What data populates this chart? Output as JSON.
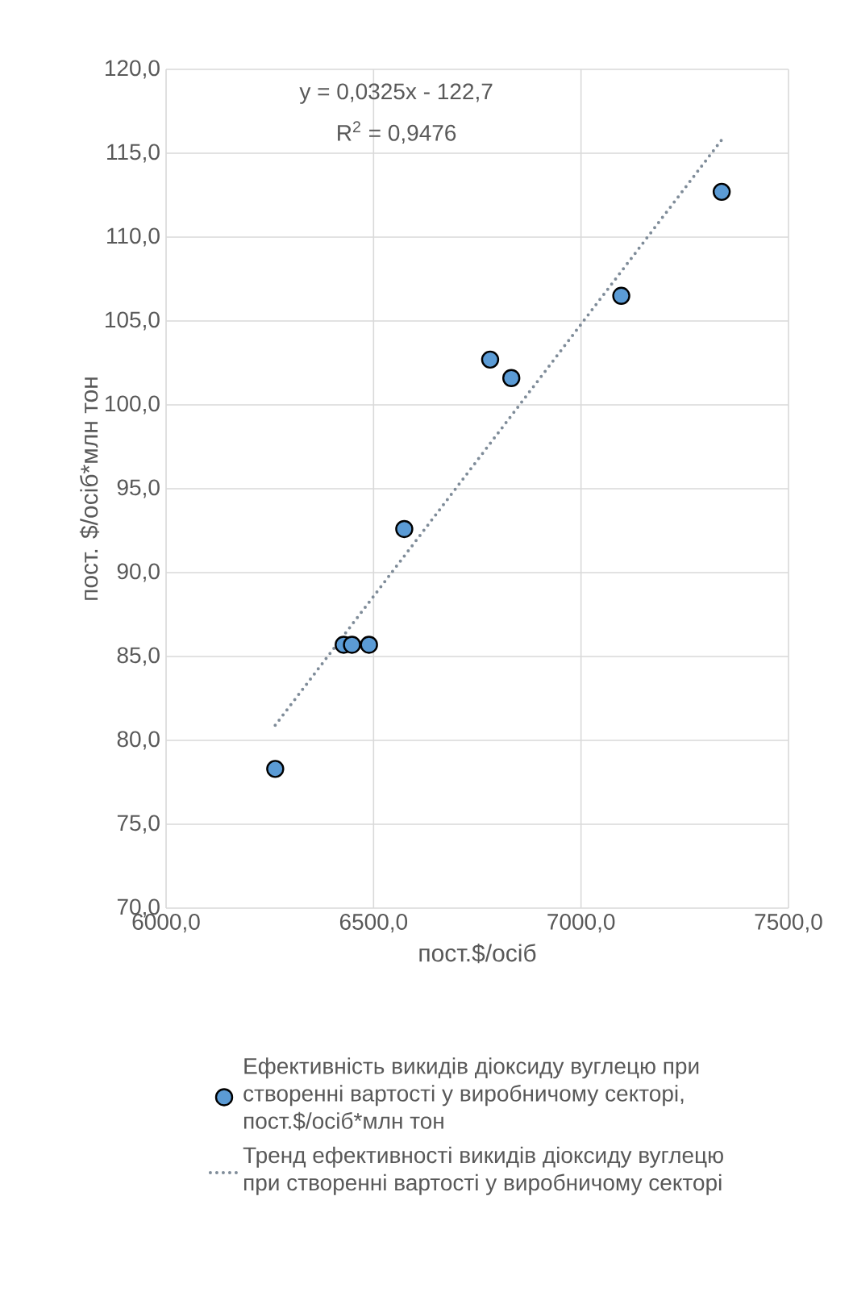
{
  "chart_data": {
    "type": "scatter",
    "xlabel": "пост.$/осіб",
    "ylabel": "пост. $/осіб*млн тон",
    "annotations": [
      "y = 0,0325x - 122,7",
      "R$^{2}$ = 0,9476"
    ],
    "series": [
      {
        "name": "Ефективність викидів діоксиду вуглецю при створенні вартості у виробничому секторі, пост.$/осіб*млн тон",
        "color": "#5b9bd5",
        "marker": "circle",
        "x": [
          6263,
          6428,
          6448,
          6489,
          6574,
          6781,
          6832,
          7097,
          7339
        ],
        "values": [
          78.3,
          85.7,
          85.7,
          85.7,
          92.6,
          102.7,
          101.6,
          106.5,
          112.7
        ]
      },
      {
        "name": "Тренд ефективності викидів діоксиду вуглецю при створенні вартості у виробничому секторі",
        "type": "line",
        "color": "#7f8c99",
        "line_style": "dotted",
        "marker": "none",
        "x": [
          6263,
          7339
        ],
        "values": [
          80.9,
          115.8
        ]
      }
    ],
    "xlim": [
      6000,
      7500
    ],
    "ylim": [
      70,
      120
    ],
    "xticks": [
      {
        "value": 6000,
        "label": "6000,0"
      },
      {
        "value": 6500,
        "label": "6500,0"
      },
      {
        "value": 7000,
        "label": "7000,0"
      },
      {
        "value": 7500,
        "label": "7500,0"
      }
    ],
    "yticks": [
      {
        "value": 70,
        "label": "70,0"
      },
      {
        "value": 75,
        "label": "75,0"
      },
      {
        "value": 80,
        "label": "80,0"
      },
      {
        "value": 85,
        "label": "85,0"
      },
      {
        "value": 90,
        "label": "90,0"
      },
      {
        "value": 95,
        "label": "95,0"
      },
      {
        "value": 100,
        "label": "100,0"
      },
      {
        "value": 105,
        "label": "105,0"
      },
      {
        "value": 110,
        "label": "110,0"
      },
      {
        "value": 115,
        "label": "115,0"
      },
      {
        "value": 120,
        "label": "120,0"
      }
    ],
    "grid": true,
    "legend": "bottom"
  }
}
